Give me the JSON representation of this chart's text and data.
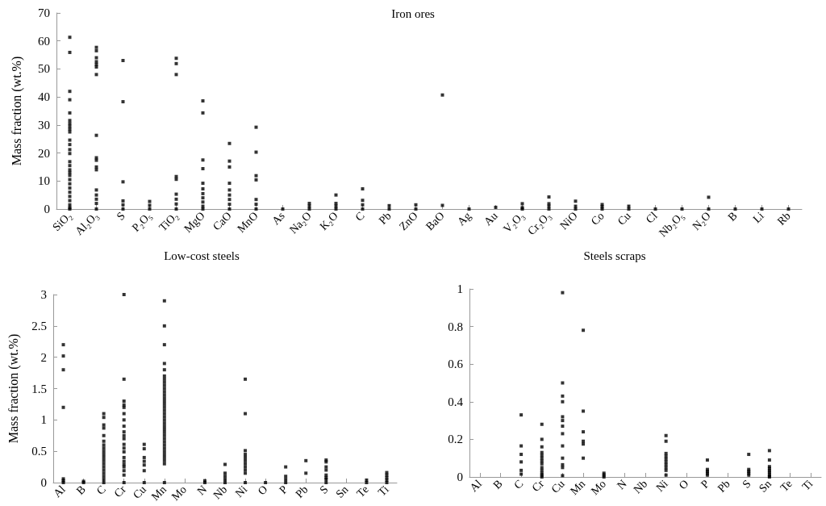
{
  "chart_data": [
    {
      "type": "scatter",
      "title": "Iron ores",
      "ylabel": "Mass fraction (wt.%)",
      "marker": "square",
      "grid": false,
      "ylim": [
        0,
        70
      ],
      "yticks": [
        0,
        10,
        20,
        30,
        40,
        50,
        60,
        70
      ],
      "categories": [
        "SiO₂",
        "Al₂O₃",
        "S",
        "P₂O₅",
        "TiO₂",
        "MgO",
        "CaO",
        "MnO",
        "As",
        "Na₂O",
        "K₂O",
        "C",
        "Pb",
        "ZnO",
        "BaO",
        "Ag",
        "Au",
        "V₂O₃",
        "Cr₂O₃",
        "NiO",
        "Co",
        "Cu",
        "Cl",
        "Nb₂O₅",
        "N₂O",
        "B",
        "Li",
        "Rb"
      ],
      "series": [
        {
          "color": "#000000",
          "x": [
            "SiO₂",
            "SiO₂",
            "SiO₂",
            "SiO₂",
            "SiO₂",
            "SiO₂",
            "SiO₂",
            "SiO₂",
            "SiO₂",
            "SiO₂",
            "SiO₂",
            "SiO₂",
            "SiO₂",
            "SiO₂",
            "SiO₂",
            "SiO₂",
            "SiO₂",
            "SiO₂",
            "SiO₂",
            "SiO₂",
            "SiO₂",
            "SiO₂",
            "SiO₂",
            "SiO₂",
            "SiO₂",
            "SiO₂",
            "SiO₂",
            "SiO₂",
            "Al₂O₃",
            "Al₂O₃",
            "Al₂O₃",
            "Al₂O₃",
            "Al₂O₃",
            "Al₂O₃",
            "Al₂O₃",
            "Al₂O₃",
            "Al₂O₃",
            "Al₂O₃",
            "Al₂O₃",
            "Al₂O₃",
            "Al₂O₃",
            "Al₂O₃",
            "Al₂O₃",
            "Al₂O₃",
            "Al₂O₃",
            "S",
            "S",
            "S",
            "S",
            "S",
            "S",
            "P₂O₅",
            "P₂O₅",
            "P₂O₅",
            "TiO₂",
            "TiO₂",
            "TiO₂",
            "TiO₂",
            "TiO₂",
            "TiO₂",
            "TiO₂",
            "TiO₂",
            "TiO₂",
            "MgO",
            "MgO",
            "MgO",
            "MgO",
            "MgO",
            "MgO",
            "MgO",
            "MgO",
            "MgO",
            "MgO",
            "MgO",
            "CaO",
            "CaO",
            "CaO",
            "CaO",
            "CaO",
            "CaO",
            "CaO",
            "CaO",
            "CaO",
            "MnO",
            "MnO",
            "MnO",
            "MnO",
            "MnO",
            "MnO",
            "MnO",
            "As",
            "Na₂O",
            "Na₂O",
            "Na₂O",
            "K₂O",
            "K₂O",
            "K₂O",
            "K₂O",
            "C",
            "C",
            "C",
            "C",
            "Pb",
            "Pb",
            "ZnO",
            "ZnO",
            "BaO",
            "BaO",
            "Ag",
            "Au",
            "V₂O₃",
            "V₂O₃",
            "V₂O₃",
            "Cr₂O₃",
            "Cr₂O₃",
            "Cr₂O₃",
            "Cr₂O₃",
            "NiO",
            "NiO",
            "NiO",
            "Co",
            "Co",
            "Co",
            "Cu",
            "Cu",
            "Cl",
            "Nb₂O₅",
            "N₂O",
            "N₂O",
            "B",
            "Li",
            "Rb"
          ],
          "values": [
            61.3,
            55.9,
            42,
            39,
            34.3,
            31.6,
            30.5,
            29.5,
            28.5,
            27.5,
            24.6,
            23,
            21.2,
            19.8,
            16.9,
            15.5,
            14,
            13,
            12,
            10.5,
            9,
            7.5,
            6,
            4.5,
            3,
            1.5,
            0.5,
            0,
            57.7,
            56.5,
            54,
            52.6,
            51.6,
            50.7,
            48,
            26.3,
            18.3,
            17.4,
            15,
            14,
            6.8,
            5,
            3.5,
            2,
            0,
            53,
            38.3,
            9.7,
            2.9,
            1.5,
            0,
            2.7,
            1.3,
            0,
            53.8,
            51.9,
            48,
            11.6,
            10.6,
            5.3,
            3.5,
            1.8,
            0,
            38.6,
            34.3,
            17.5,
            14.4,
            9.2,
            7.2,
            5.5,
            4,
            2.5,
            1,
            0,
            23.4,
            17.1,
            15,
            9.2,
            6.8,
            5,
            3.4,
            1.7,
            0,
            29.2,
            20.3,
            11.9,
            10.4,
            3.4,
            1.7,
            0,
            0,
            2,
            1,
            0,
            5,
            2,
            1,
            0,
            7.2,
            3.1,
            1.5,
            0,
            1.2,
            0,
            1.5,
            0,
            40.7,
            1.3,
            0,
            0.6,
            1.9,
            0.5,
            0,
            4.3,
            1.9,
            1,
            0,
            2.8,
            1,
            0,
            1.6,
            0.8,
            0,
            1,
            0,
            0,
            0,
            4.2,
            0,
            0,
            0,
            0
          ]
        }
      ]
    },
    {
      "type": "scatter",
      "title": "Low-cost steels",
      "ylabel": "Mass fraction (wt.%)",
      "marker": "square",
      "grid": false,
      "ylim": [
        0,
        3
      ],
      "yticks": [
        0,
        0.5,
        1,
        1.5,
        2,
        2.5,
        3
      ],
      "categories": [
        "Al",
        "B",
        "C",
        "Cr",
        "Cu",
        "Mn",
        "Mo",
        "N",
        "Nb",
        "Ni",
        "O",
        "P",
        "Pb",
        "S",
        "Sn",
        "Te",
        "Ti"
      ],
      "series": [
        {
          "color": "#000000",
          "x": [
            "Al",
            "Al",
            "Al",
            "Al",
            "Al",
            "Al",
            "Al",
            "B",
            "B",
            "C",
            "C",
            "C",
            "C",
            "C",
            "C",
            "C",
            "C",
            "C",
            "C",
            "C",
            "C",
            "C",
            "C",
            "C",
            "C",
            "C",
            "C",
            "C",
            "Cr",
            "Cr",
            "Cr",
            "Cr",
            "Cr",
            "Cr",
            "Cr",
            "Cr",
            "Cr",
            "Cr",
            "Cr",
            "Cr",
            "Cr",
            "Cr",
            "Cr",
            "Cr",
            "Cr",
            "Cr",
            "Cr",
            "Cr",
            "Cr",
            "Cu",
            "Cu",
            "Cu",
            "Cu",
            "Cu",
            "Cu",
            "Cu",
            "Mn",
            "Mn",
            "Mn",
            "Mn",
            "Mn",
            "Mn",
            "Mn",
            "Mn",
            "Mn",
            "Mn",
            "Mn",
            "Mn",
            "Mn",
            "Mn",
            "Mn",
            "Mn",
            "Mn",
            "Mn",
            "Mn",
            "Mn",
            "Mn",
            "Mn",
            "Mn",
            "Mn",
            "Mn",
            "Mn",
            "Mn",
            "Mn",
            "Mn",
            "Mn",
            "Mn",
            "Mn",
            "Mn",
            "Mn",
            "Mn",
            "N",
            "N",
            "Nb",
            "Nb",
            "Nb",
            "Nb",
            "Nb",
            "Ni",
            "Ni",
            "Ni",
            "Ni",
            "Ni",
            "Ni",
            "Ni",
            "Ni",
            "Ni",
            "Ni",
            "Ni",
            "O",
            "P",
            "P",
            "P",
            "P",
            "Pb",
            "Pb",
            "S",
            "S",
            "S",
            "S",
            "S",
            "S",
            "S",
            "S",
            "Te",
            "Te",
            "Ti",
            "Ti",
            "Ti",
            "Ti",
            "Ti"
          ],
          "values": [
            2.2,
            2.02,
            1.8,
            1.2,
            0.06,
            0.03,
            0,
            0.02,
            0,
            1.1,
            1.04,
            0.92,
            0.87,
            0.75,
            0.66,
            0.6,
            0.55,
            0.5,
            0.45,
            0.4,
            0.35,
            0.3,
            0.25,
            0.2,
            0.15,
            0.1,
            0.05,
            0,
            3,
            1.65,
            1.3,
            1.24,
            1.2,
            1.1,
            1,
            0.9,
            0.81,
            0.75,
            0.7,
            0.61,
            0.55,
            0.49,
            0.4,
            0.34,
            0.29,
            0.25,
            0.19,
            0.12,
            0,
            0.61,
            0.54,
            0.4,
            0.34,
            0.28,
            0.19,
            0,
            2.9,
            2.5,
            2.2,
            1.9,
            1.8,
            1.7,
            1.65,
            1.6,
            1.55,
            1.5,
            1.45,
            1.4,
            1.35,
            1.3,
            1.25,
            1.2,
            1.15,
            1.1,
            1.05,
            1,
            0.95,
            0.9,
            0.85,
            0.8,
            0.75,
            0.7,
            0.65,
            0.6,
            0.55,
            0.5,
            0.45,
            0.4,
            0.35,
            0.3,
            0,
            0.03,
            0,
            0.29,
            0.15,
            0.1,
            0.05,
            0,
            1.65,
            1.1,
            0.51,
            0.45,
            0.4,
            0.35,
            0.3,
            0.25,
            0.2,
            0.15,
            0,
            0,
            0.25,
            0.1,
            0.05,
            0,
            0.35,
            0.15,
            0.36,
            0.33,
            0.25,
            0.2,
            0.12,
            0.08,
            0.05,
            0,
            0.04,
            0,
            0.16,
            0.12,
            0.08,
            0.04,
            0
          ]
        }
      ]
    },
    {
      "type": "scatter",
      "title": "Steels scraps",
      "marker": "square",
      "grid": false,
      "ylim": [
        0,
        1
      ],
      "yticks": [
        0,
        0.2,
        0.4,
        0.6,
        0.8,
        1
      ],
      "categories": [
        "Al",
        "B",
        "C",
        "Cr",
        "Cu",
        "Mn",
        "Mo",
        "N",
        "Nb",
        "Ni",
        "O",
        "P",
        "Pb",
        "S",
        "Sn",
        "Te",
        "Ti"
      ],
      "series": [
        {
          "color": "#000000",
          "x": [
            "C",
            "C",
            "C",
            "C",
            "C",
            "C",
            "Cr",
            "Cr",
            "Cr",
            "Cr",
            "Cr",
            "Cr",
            "Cr",
            "Cr",
            "Cr",
            "Cr",
            "Cr",
            "Cr",
            "Cr",
            "Cu",
            "Cu",
            "Cu",
            "Cu",
            "Cu",
            "Cu",
            "Cu",
            "Cu",
            "Cu",
            "Cu",
            "Cu",
            "Cu",
            "Cu",
            "Mn",
            "Mn",
            "Mn",
            "Mn",
            "Mn",
            "Mn",
            "Mo",
            "Mo",
            "Mo",
            "Ni",
            "Ni",
            "Ni",
            "Ni",
            "Ni",
            "Ni",
            "Ni",
            "Ni",
            "Ni",
            "Ni",
            "P",
            "P",
            "P",
            "P",
            "P",
            "S",
            "S",
            "S",
            "S",
            "S",
            "Sn",
            "Sn",
            "Sn",
            "Sn",
            "Sn",
            "Sn",
            "Sn",
            "Sn",
            "Sn"
          ],
          "values": [
            0.33,
            0.165,
            0.12,
            0.08,
            0.035,
            0.015,
            0.28,
            0.2,
            0.16,
            0.13,
            0.115,
            0.1,
            0.085,
            0.07,
            0.05,
            0.035,
            0.02,
            0.01,
            0,
            0.98,
            0.5,
            0.43,
            0.4,
            0.32,
            0.3,
            0.27,
            0.23,
            0.165,
            0.1,
            0.065,
            0.05,
            0.007,
            0.78,
            0.35,
            0.24,
            0.19,
            0.175,
            0.1,
            0.02,
            0.01,
            0,
            0.22,
            0.19,
            0.125,
            0.11,
            0.095,
            0.08,
            0.065,
            0.05,
            0.035,
            0.01,
            0.09,
            0.04,
            0.03,
            0.02,
            0.01,
            0.12,
            0.04,
            0.03,
            0.02,
            0.01,
            0.14,
            0.09,
            0.055,
            0.045,
            0.035,
            0.025,
            0.015,
            0.005,
            0
          ]
        }
      ]
    }
  ]
}
